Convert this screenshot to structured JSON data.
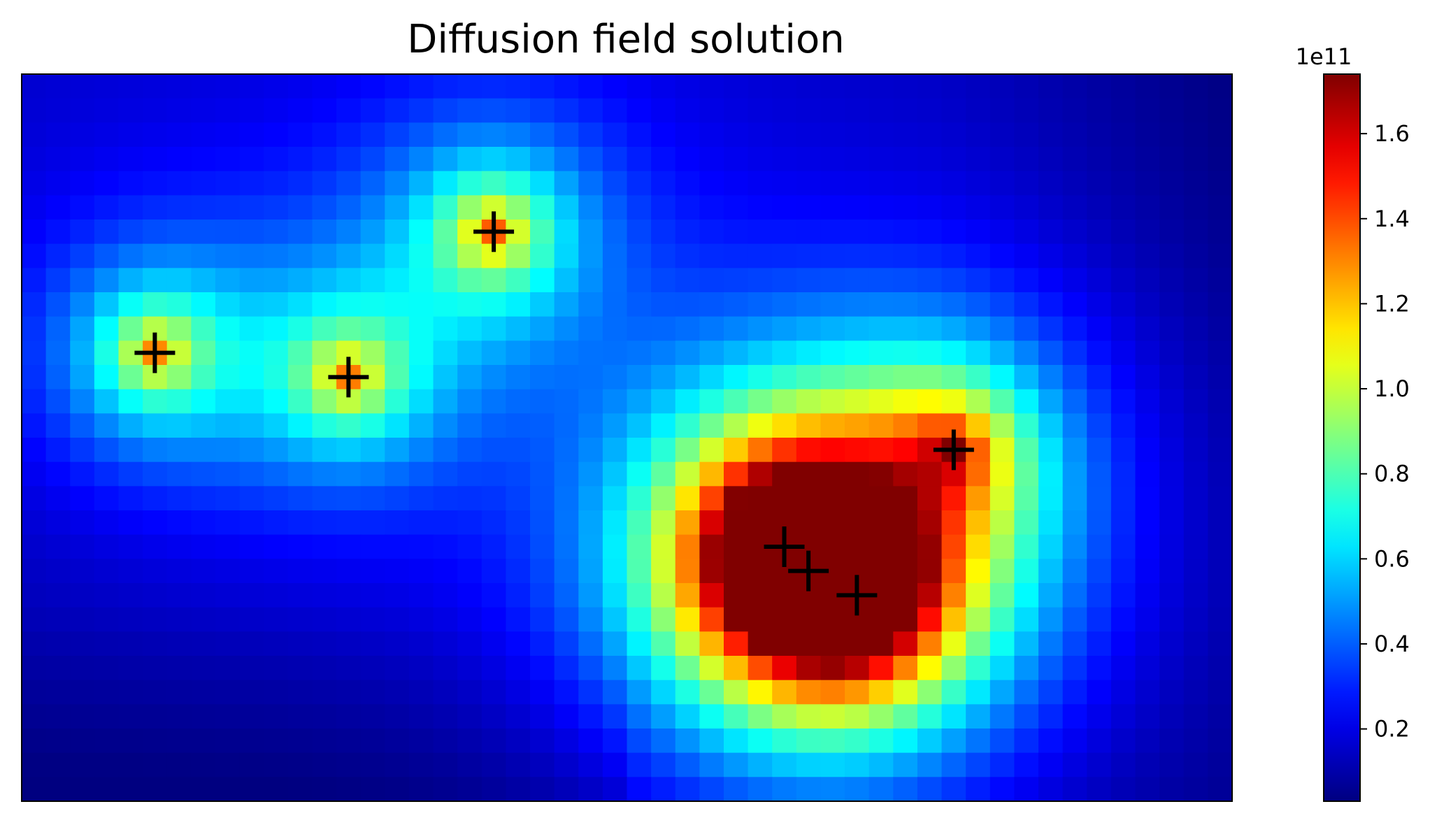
{
  "chart_data": {
    "type": "heatmap",
    "title": "Diffusion field solution",
    "xlabel": "",
    "ylabel": "",
    "grid": false,
    "colormap": "jet",
    "grid_size": {
      "cols": 50,
      "rows": 30
    },
    "x_range": [
      0,
      50
    ],
    "y_range": [
      0,
      30
    ],
    "value_range": [
      3000000000.0,
      174000000000.0
    ],
    "sources": [
      {
        "x": 5.5,
        "y": 11.5,
        "peak": 110000000000.0,
        "sigma": 1.8
      },
      {
        "x": 13.5,
        "y": 12.5,
        "peak": 105000000000.0,
        "sigma": 1.8
      },
      {
        "x": 19.5,
        "y": 6.5,
        "peak": 115000000000.0,
        "sigma": 1.8
      },
      {
        "x": 31.5,
        "y": 19.5,
        "peak": 174000000000.0,
        "sigma": 2.2
      },
      {
        "x": 32.5,
        "y": 20.5,
        "peak": 170000000000.0,
        "sigma": 2.2
      },
      {
        "x": 34.5,
        "y": 21.5,
        "peak": 165000000000.0,
        "sigma": 2.2
      },
      {
        "x": 38.5,
        "y": 15.5,
        "peak": 110000000000.0,
        "sigma": 2.0
      }
    ],
    "background": {
      "peak": 15000000000.0,
      "decay_to": 3000000000.0
    },
    "colorbar": {
      "offset_label": "1e11",
      "ticks": [
        {
          "value": 0.2,
          "label": "0.2"
        },
        {
          "value": 0.4,
          "label": "0.4"
        },
        {
          "value": 0.6,
          "label": "0.6"
        },
        {
          "value": 0.8,
          "label": "0.8"
        },
        {
          "value": 1.0,
          "label": "1.0"
        },
        {
          "value": 1.2,
          "label": "1.2"
        },
        {
          "value": 1.4,
          "label": "1.4"
        },
        {
          "value": 1.6,
          "label": "1.6"
        }
      ],
      "range": [
        0.03,
        1.74
      ]
    },
    "markers": [
      {
        "x": 5.5,
        "y": 11.5
      },
      {
        "x": 13.5,
        "y": 12.5
      },
      {
        "x": 19.5,
        "y": 6.5
      },
      {
        "x": 38.5,
        "y": 15.5
      },
      {
        "x": 31.5,
        "y": 19.5
      },
      {
        "x": 32.5,
        "y": 20.5
      },
      {
        "x": 34.5,
        "y": 21.5
      }
    ],
    "marker_symbol": "+",
    "marker_color": "#000000"
  }
}
